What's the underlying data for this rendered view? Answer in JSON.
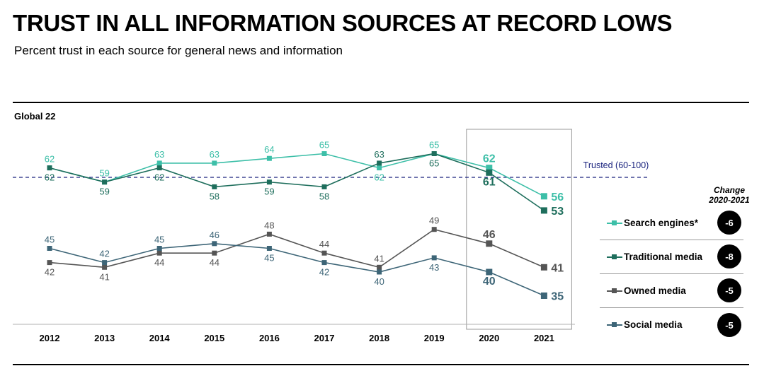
{
  "header": {
    "title": "TRUST IN ALL INFORMATION SOURCES AT RECORD LOWS",
    "subtitle": "Percent trust in each source for general news and information"
  },
  "region_label": "Global 22",
  "legend": {
    "change_header_line1": "Change",
    "change_header_line2": "2020-2021",
    "items": [
      {
        "label": "Search engines*",
        "change": "-6",
        "color": "#3dbfa8"
      },
      {
        "label": "Traditional media",
        "change": "-8",
        "color": "#1e6e5c"
      },
      {
        "label": "Owned media",
        "change": "-5",
        "color": "#555555"
      },
      {
        "label": "Social media",
        "change": "-5",
        "color": "#3d6577"
      }
    ]
  },
  "chart_data": {
    "type": "line",
    "title": "TRUST IN ALL INFORMATION SOURCES AT RECORD LOWS",
    "subtitle": "Percent trust in each source for general news and information",
    "categories": [
      "2012",
      "2013",
      "2014",
      "2015",
      "2016",
      "2017",
      "2018",
      "2019",
      "2020",
      "2021"
    ],
    "series": [
      {
        "name": "Search engines*",
        "color": "#3dbfa8",
        "values": [
          62,
          59,
          63,
          63,
          64,
          65,
          62,
          65,
          62,
          56
        ]
      },
      {
        "name": "Traditional media",
        "color": "#1e6e5c",
        "values": [
          62,
          59,
          62,
          58,
          59,
          58,
          63,
          65,
          61,
          53
        ]
      },
      {
        "name": "Owned media",
        "color": "#555555",
        "values": [
          42,
          41,
          44,
          44,
          48,
          44,
          41,
          49,
          46,
          41
        ]
      },
      {
        "name": "Social media",
        "color": "#3d6577",
        "values": [
          45,
          42,
          45,
          46,
          45,
          42,
          40,
          43,
          40,
          35
        ]
      }
    ],
    "reference_line": {
      "value": 60,
      "label": "Trusted (60-100)",
      "color": "#1a237e"
    },
    "highlight_categories": [
      "2020",
      "2021"
    ],
    "legend_position": "right",
    "grid": false
  }
}
